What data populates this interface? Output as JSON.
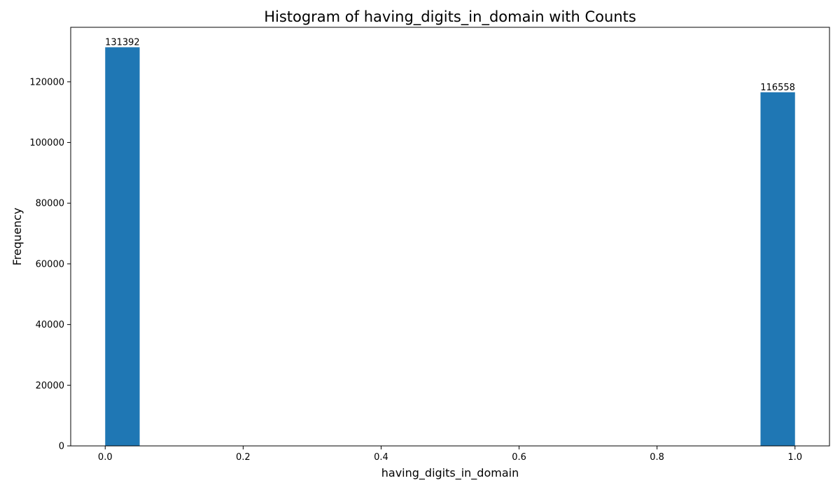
{
  "chart_data": {
    "type": "bar",
    "title": "Histogram of having_digits_in_domain with Counts",
    "xlabel": "having_digits_in_domain",
    "ylabel": "Frequency",
    "bins": [
      {
        "x_start": 0.0,
        "x_end": 0.05,
        "value": 131392,
        "label": "131392"
      },
      {
        "x_start": 0.95,
        "x_end": 1.0,
        "value": 116558,
        "label": "116558"
      }
    ],
    "xlim": [
      -0.05,
      1.05
    ],
    "ylim": [
      0,
      137961.6
    ],
    "xticks": [
      {
        "value": 0.0,
        "label": "0.0"
      },
      {
        "value": 0.2,
        "label": "0.2"
      },
      {
        "value": 0.4,
        "label": "0.4"
      },
      {
        "value": 0.6,
        "label": "0.6"
      },
      {
        "value": 0.8,
        "label": "0.8"
      },
      {
        "value": 1.0,
        "label": "1.0"
      }
    ],
    "yticks": [
      {
        "value": 0,
        "label": "0"
      },
      {
        "value": 20000,
        "label": "20000"
      },
      {
        "value": 40000,
        "label": "40000"
      },
      {
        "value": 60000,
        "label": "60000"
      },
      {
        "value": 80000,
        "label": "80000"
      },
      {
        "value": 100000,
        "label": "100000"
      },
      {
        "value": 120000,
        "label": "120000"
      }
    ],
    "bar_color": "#1f77b4",
    "grid": false
  }
}
